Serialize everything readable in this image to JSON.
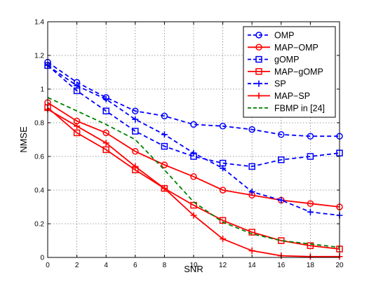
{
  "chart_data": {
    "type": "line",
    "title": "",
    "xlabel": "SNR",
    "ylabel": "NMSE",
    "xlim": [
      0,
      20
    ],
    "ylim": [
      0,
      1.4
    ],
    "xticks": [
      0,
      2,
      4,
      6,
      8,
      10,
      12,
      14,
      16,
      18,
      20
    ],
    "yticks": [
      0,
      0.2,
      0.4,
      0.6,
      0.8,
      1,
      1.2,
      1.4
    ],
    "ytick_labels": [
      "0",
      "0.2",
      "0.4",
      "0.6",
      "0.8",
      "1",
      "1.2",
      "1.4"
    ],
    "grid": true,
    "legend_position": "top-right",
    "series": [
      {
        "name": "OMP",
        "color": "#0000ff",
        "dash": "dashed",
        "marker": "circle",
        "x": [
          0,
          2,
          4,
          6,
          8,
          10,
          12,
          14,
          16,
          18,
          20
        ],
        "y": [
          1.16,
          1.04,
          0.95,
          0.87,
          0.84,
          0.79,
          0.78,
          0.76,
          0.73,
          0.72,
          0.72
        ]
      },
      {
        "name": "MAP−OMP",
        "color": "#ff0000",
        "dash": "solid",
        "marker": "circle",
        "x": [
          0,
          2,
          4,
          6,
          8,
          10,
          12,
          14,
          16,
          18,
          20
        ],
        "y": [
          0.92,
          0.81,
          0.74,
          0.63,
          0.55,
          0.48,
          0.4,
          0.37,
          0.34,
          0.32,
          0.3
        ]
      },
      {
        "name": "gOMP",
        "color": "#0000ff",
        "dash": "dashed",
        "marker": "square",
        "x": [
          0,
          2,
          4,
          6,
          8,
          10,
          12,
          14,
          16,
          18,
          20
        ],
        "y": [
          1.14,
          0.99,
          0.87,
          0.75,
          0.66,
          0.6,
          0.56,
          0.54,
          0.58,
          0.6,
          0.62
        ]
      },
      {
        "name": "MAP−gOMP",
        "color": "#ff0000",
        "dash": "solid",
        "marker": "square",
        "x": [
          0,
          2,
          4,
          6,
          8,
          10,
          12,
          14,
          16,
          18,
          20
        ],
        "y": [
          0.89,
          0.74,
          0.64,
          0.52,
          0.41,
          0.31,
          0.22,
          0.15,
          0.1,
          0.07,
          0.05
        ]
      },
      {
        "name": "SP",
        "color": "#0000ff",
        "dash": "dashed",
        "marker": "plus",
        "x": [
          0,
          2,
          4,
          6,
          8,
          10,
          12,
          14,
          16,
          18,
          20
        ],
        "y": [
          1.14,
          1.02,
          0.94,
          0.82,
          0.73,
          0.62,
          0.53,
          0.39,
          0.34,
          0.27,
          0.25
        ]
      },
      {
        "name": "MAP−SP",
        "color": "#ff0000",
        "dash": "solid",
        "marker": "plus",
        "x": [
          0,
          2,
          4,
          6,
          8,
          10,
          12,
          14,
          16,
          18,
          20
        ],
        "y": [
          0.88,
          0.78,
          0.68,
          0.54,
          0.41,
          0.25,
          0.11,
          0.04,
          0.01,
          0.005,
          0.005
        ]
      },
      {
        "name": "FBMP in [24]",
        "color": "#008000",
        "dash": "dashed",
        "marker": "none",
        "x": [
          0,
          2,
          4,
          6,
          8,
          10,
          12,
          14,
          16,
          18,
          20
        ],
        "y": [
          0.95,
          0.87,
          0.79,
          0.7,
          0.52,
          0.33,
          0.21,
          0.14,
          0.1,
          0.08,
          0.06
        ]
      }
    ]
  }
}
